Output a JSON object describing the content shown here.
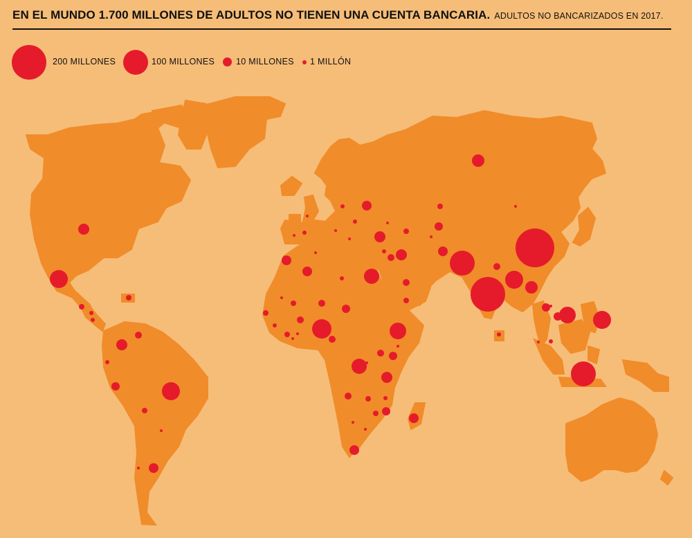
{
  "header": {
    "title": "EN EL MUNDO 1.700 MILLONES DE ADULTOS NO TIENEN UNA CUENTA BANCARIA.",
    "subtitle": "ADULTOS NO BANCARIZADOS EN 2017."
  },
  "legend": [
    {
      "label": "200 MILLONES",
      "value_millions": 200
    },
    {
      "label": "100 MILLONES",
      "value_millions": 100
    },
    {
      "label": "10 MILLONES",
      "value_millions": 10
    },
    {
      "label": "1 MILLÓN",
      "value_millions": 1
    }
  ],
  "colors": {
    "background": "#f6bd78",
    "land": "#f08c2a",
    "bubble": "#e51b2b",
    "text": "#111111"
  }
}
